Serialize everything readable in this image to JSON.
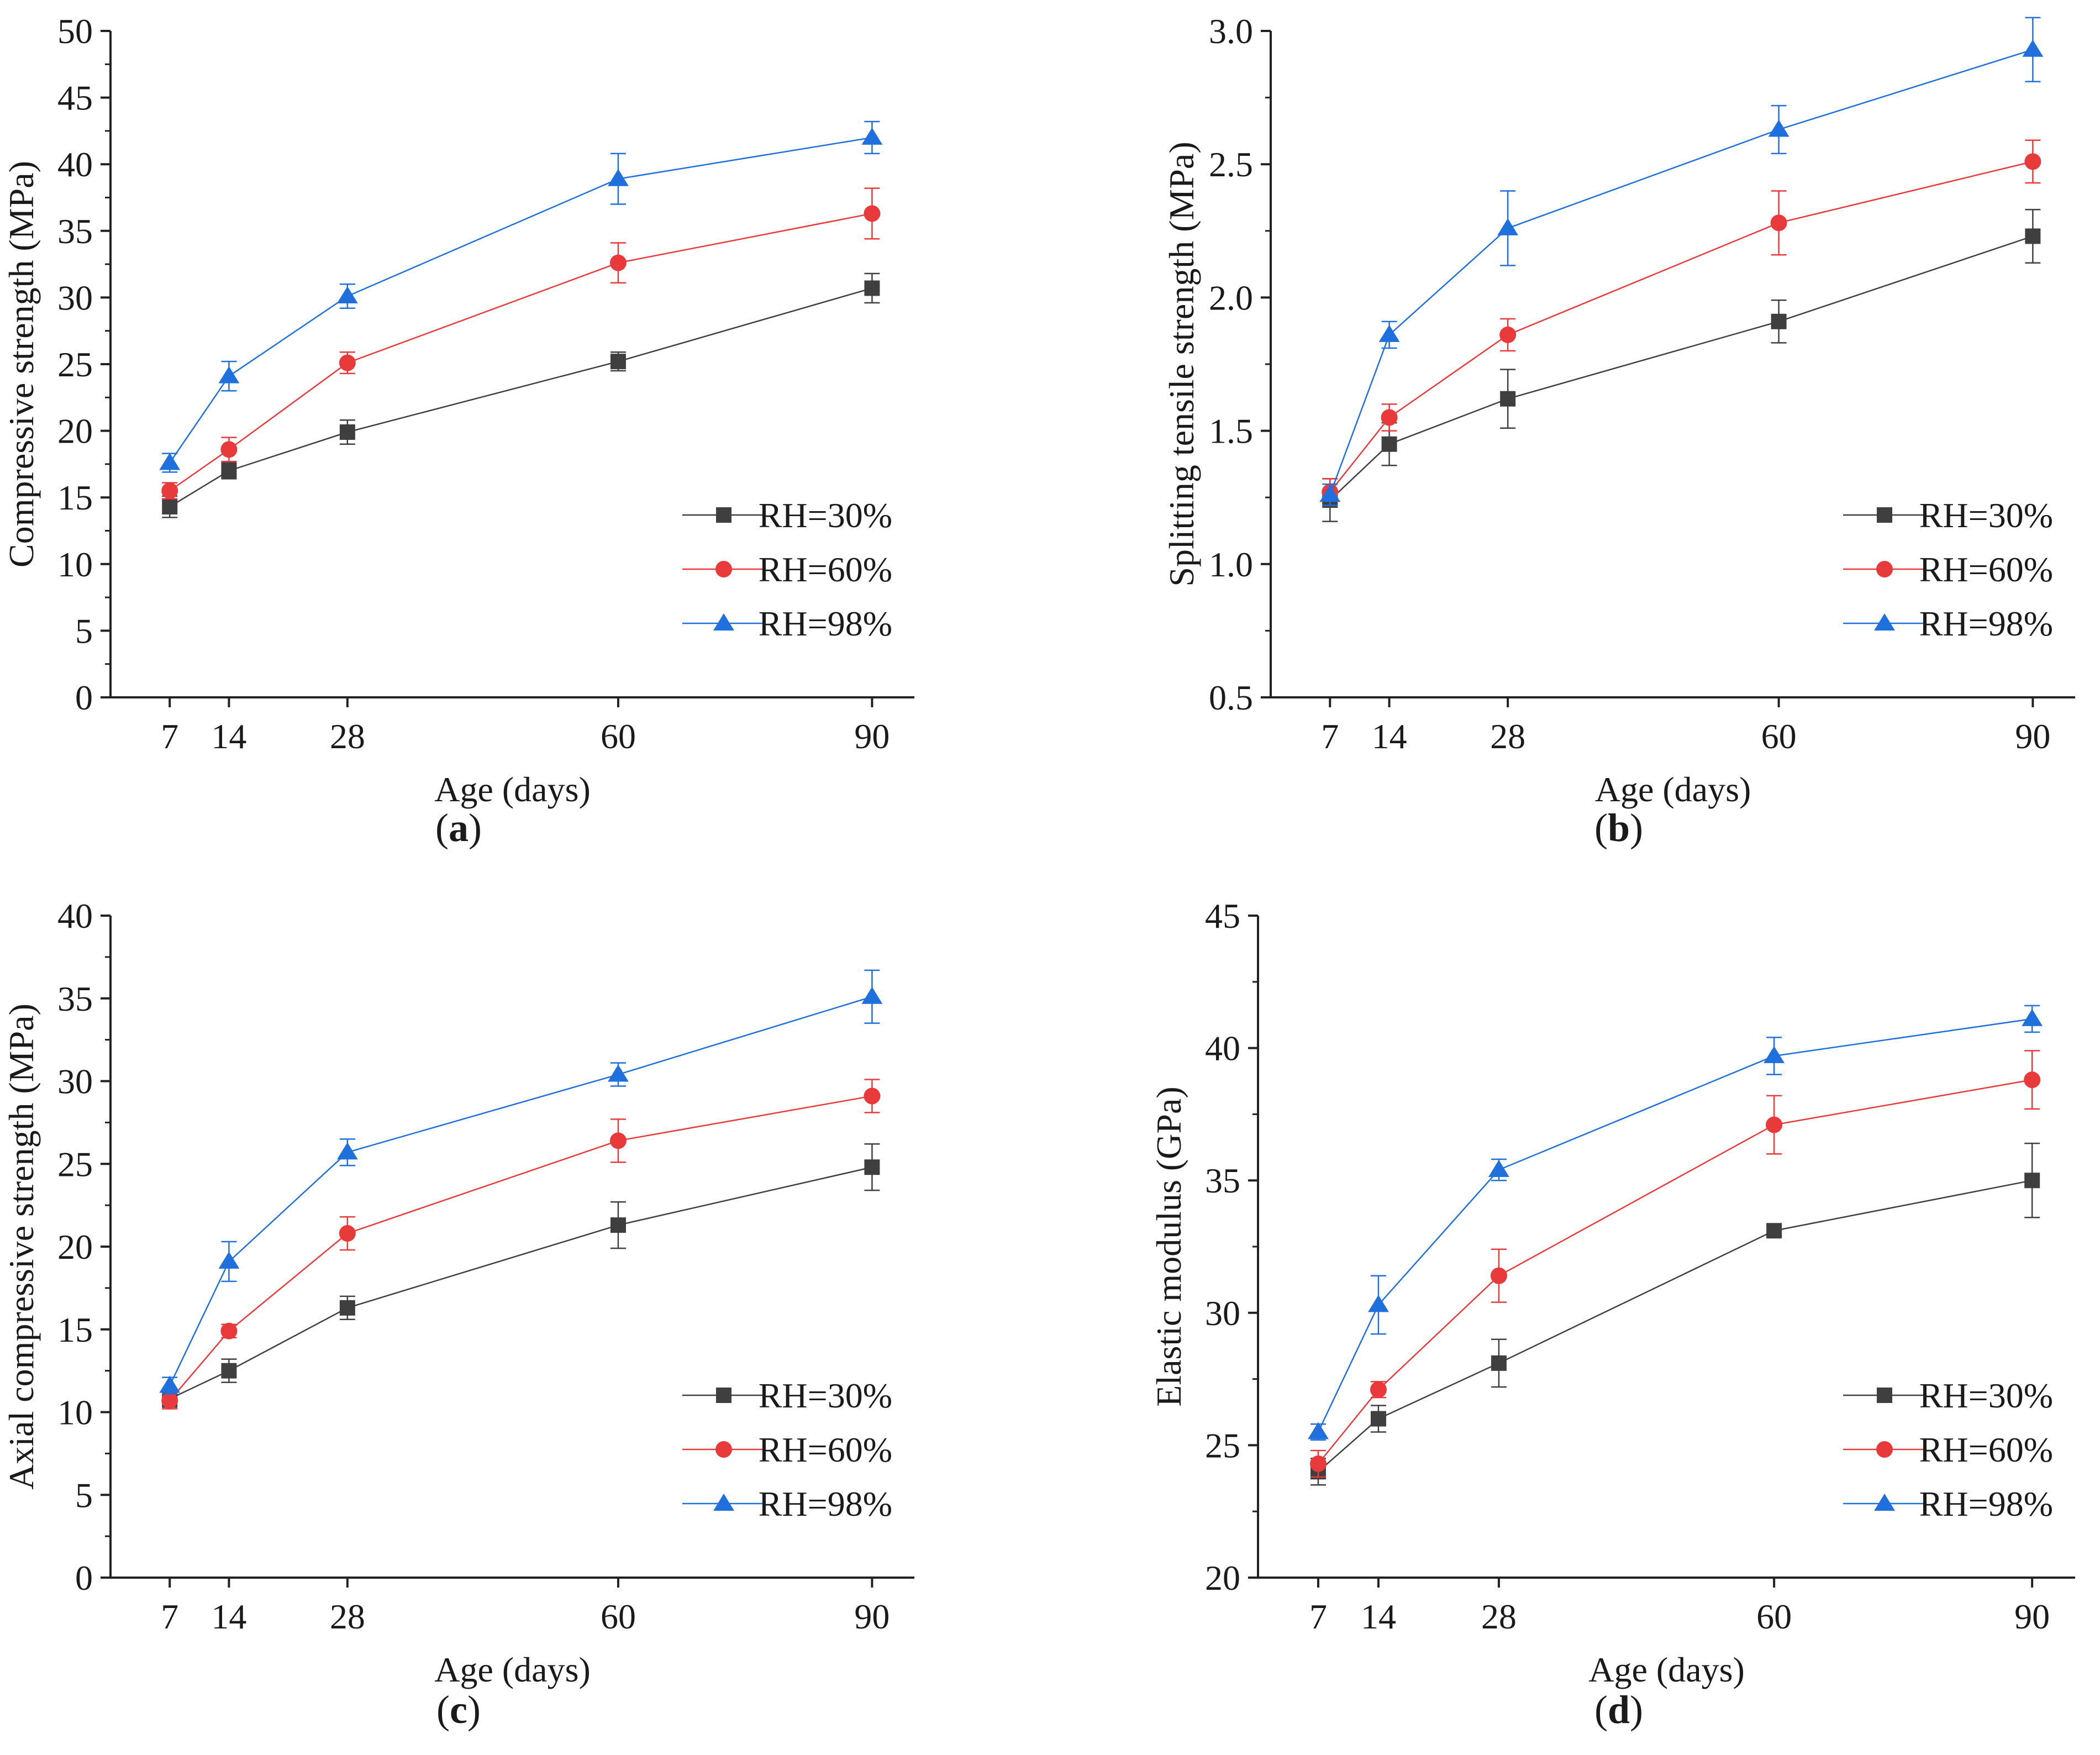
{
  "chart_data": [
    {
      "type": "line",
      "panel": "(a)",
      "panel_letter": "a",
      "xlabel": "Age (days)",
      "ylabel": "Compressive strength (MPa)",
      "x": [
        7,
        14,
        28,
        60,
        90
      ],
      "x_tick_labels": [
        "7",
        "14",
        "28",
        "60",
        "90"
      ],
      "xlim": [
        0,
        95
      ],
      "ylim": [
        0,
        50
      ],
      "y_ticks": [
        0,
        5,
        10,
        15,
        20,
        25,
        30,
        35,
        40,
        45,
        50
      ],
      "y_tick_labels": [
        "0",
        "5",
        "10",
        "15",
        "20",
        "25",
        "30",
        "35",
        "40",
        "45",
        "50"
      ],
      "legend_position": "bottom-right",
      "series": [
        {
          "name": "RH=30%",
          "marker": "square",
          "color": "#3f3f3f",
          "values": [
            14.3,
            17.0,
            19.9,
            25.2,
            30.7
          ],
          "error": [
            0.8,
            0.6,
            0.9,
            0.7,
            1.1
          ]
        },
        {
          "name": "RH=60%",
          "marker": "circle",
          "color": "#e8393b",
          "values": [
            15.5,
            18.6,
            25.1,
            32.6,
            36.3
          ],
          "error": [
            0.6,
            0.9,
            0.8,
            1.5,
            1.9
          ]
        },
        {
          "name": "RH=98%",
          "marker": "triangle",
          "color": "#1f6fdc",
          "values": [
            17.6,
            24.1,
            30.1,
            38.9,
            42.0
          ],
          "error": [
            0.7,
            1.1,
            0.9,
            1.9,
            1.2
          ]
        }
      ]
    },
    {
      "type": "line",
      "panel": "(b)",
      "panel_letter": "b",
      "xlabel": "Age (days)",
      "ylabel": "Splitting tensile strength (MPa)",
      "x": [
        7,
        14,
        28,
        60,
        90
      ],
      "x_tick_labels": [
        "7",
        "14",
        "28",
        "60",
        "90"
      ],
      "xlim": [
        0,
        95
      ],
      "ylim": [
        0.5,
        3.0
      ],
      "y_ticks": [
        0.5,
        1.0,
        1.5,
        2.0,
        2.5,
        3.0
      ],
      "y_tick_labels": [
        "0.5",
        "1.0",
        "1.5",
        "2.0",
        "2.5",
        "3.0"
      ],
      "legend_position": "bottom-right",
      "series": [
        {
          "name": "RH=30%",
          "marker": "square",
          "color": "#3f3f3f",
          "values": [
            1.24,
            1.45,
            1.62,
            1.91,
            2.23
          ],
          "error": [
            0.08,
            0.08,
            0.11,
            0.08,
            0.1
          ]
        },
        {
          "name": "RH=60%",
          "marker": "circle",
          "color": "#e8393b",
          "values": [
            1.27,
            1.55,
            1.86,
            2.28,
            2.51
          ],
          "error": [
            0.05,
            0.05,
            0.06,
            0.12,
            0.08
          ]
        },
        {
          "name": "RH=98%",
          "marker": "triangle",
          "color": "#1f6fdc",
          "values": [
            1.26,
            1.86,
            2.26,
            2.63,
            2.93
          ],
          "error": [
            0.04,
            0.05,
            0.14,
            0.09,
            0.12
          ]
        }
      ]
    },
    {
      "type": "line",
      "panel": "(c)",
      "panel_letter": "c",
      "xlabel": "Age (days)",
      "ylabel": "Axial compressive strength (MPa)",
      "x": [
        7,
        14,
        28,
        60,
        90
      ],
      "x_tick_labels": [
        "7",
        "14",
        "28",
        "60",
        "90"
      ],
      "xlim": [
        0,
        95
      ],
      "ylim": [
        0,
        40
      ],
      "y_ticks": [
        0,
        5,
        10,
        15,
        20,
        25,
        30,
        35,
        40
      ],
      "y_tick_labels": [
        "0",
        "5",
        "10",
        "15",
        "20",
        "25",
        "30",
        "35",
        "40"
      ],
      "legend_position": "bottom-right",
      "series": [
        {
          "name": "RH=30%",
          "marker": "square",
          "color": "#3f3f3f",
          "values": [
            10.8,
            12.5,
            16.3,
            21.3,
            24.8
          ],
          "error": [
            0.5,
            0.7,
            0.7,
            1.4,
            1.4
          ]
        },
        {
          "name": "RH=60%",
          "marker": "circle",
          "color": "#e8393b",
          "values": [
            10.7,
            14.9,
            20.8,
            26.4,
            29.1
          ],
          "error": [
            0.5,
            0.4,
            1.0,
            1.3,
            1.0
          ]
        },
        {
          "name": "RH=98%",
          "marker": "triangle",
          "color": "#1f6fdc",
          "values": [
            11.6,
            19.1,
            25.7,
            30.4,
            35.1
          ],
          "error": [
            0.5,
            1.2,
            0.8,
            0.7,
            1.6
          ]
        }
      ]
    },
    {
      "type": "line",
      "panel": "(d)",
      "panel_letter": "d",
      "xlabel": "Age (days)",
      "ylabel": "Elastic modulus (GPa)",
      "x": [
        7,
        14,
        28,
        60,
        90
      ],
      "x_tick_labels": [
        "7",
        "14",
        "28",
        "60",
        "90"
      ],
      "xlim": [
        0,
        95
      ],
      "ylim": [
        20,
        45
      ],
      "y_ticks": [
        20,
        25,
        30,
        35,
        40,
        45
      ],
      "y_tick_labels": [
        "20",
        "25",
        "30",
        "35",
        "40",
        "45"
      ],
      "legend_position": "bottom-right",
      "series": [
        {
          "name": "RH=30%",
          "marker": "square",
          "color": "#3f3f3f",
          "values": [
            24.0,
            26.0,
            28.1,
            33.1,
            35.0
          ],
          "error": [
            0.5,
            0.5,
            0.9,
            0.2,
            1.4
          ]
        },
        {
          "name": "RH=60%",
          "marker": "circle",
          "color": "#e8393b",
          "values": [
            24.3,
            27.1,
            31.4,
            37.1,
            38.8
          ],
          "error": [
            0.5,
            0.3,
            1.0,
            1.1,
            1.1
          ]
        },
        {
          "name": "RH=98%",
          "marker": "triangle",
          "color": "#1f6fdc",
          "values": [
            25.5,
            30.3,
            35.4,
            39.7,
            41.1
          ],
          "error": [
            0.3,
            1.1,
            0.4,
            0.7,
            0.5
          ]
        }
      ]
    }
  ]
}
